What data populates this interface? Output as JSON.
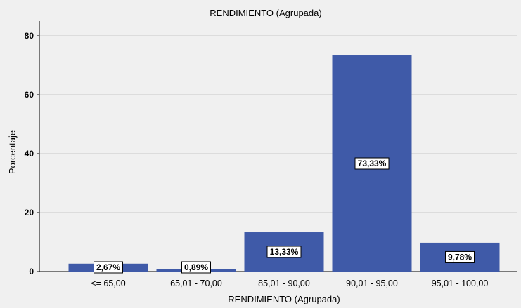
{
  "chart_data": {
    "type": "bar",
    "title": "RENDIMIENTO (Agrupada)",
    "xlabel": "RENDIMIENTO (Agrupada)",
    "ylabel": "Porcentaje",
    "categories": [
      "<= 65,00",
      "65,01 - 70,00",
      "85,01 - 90,00",
      "90,01 - 95,00",
      "95,01 - 100,00"
    ],
    "values": [
      2.67,
      0.89,
      13.33,
      73.33,
      9.78
    ],
    "data_labels": [
      "2,67%",
      "0,89%",
      "13,33%",
      "73,33%",
      "9,78%"
    ],
    "ylim": [
      0,
      85
    ],
    "yticks": [
      0,
      20,
      40,
      60,
      80
    ],
    "grid": true,
    "bar_color": "#3f5aa8",
    "background": "#f0f0f0",
    "grid_color": "#c8c8c8"
  }
}
